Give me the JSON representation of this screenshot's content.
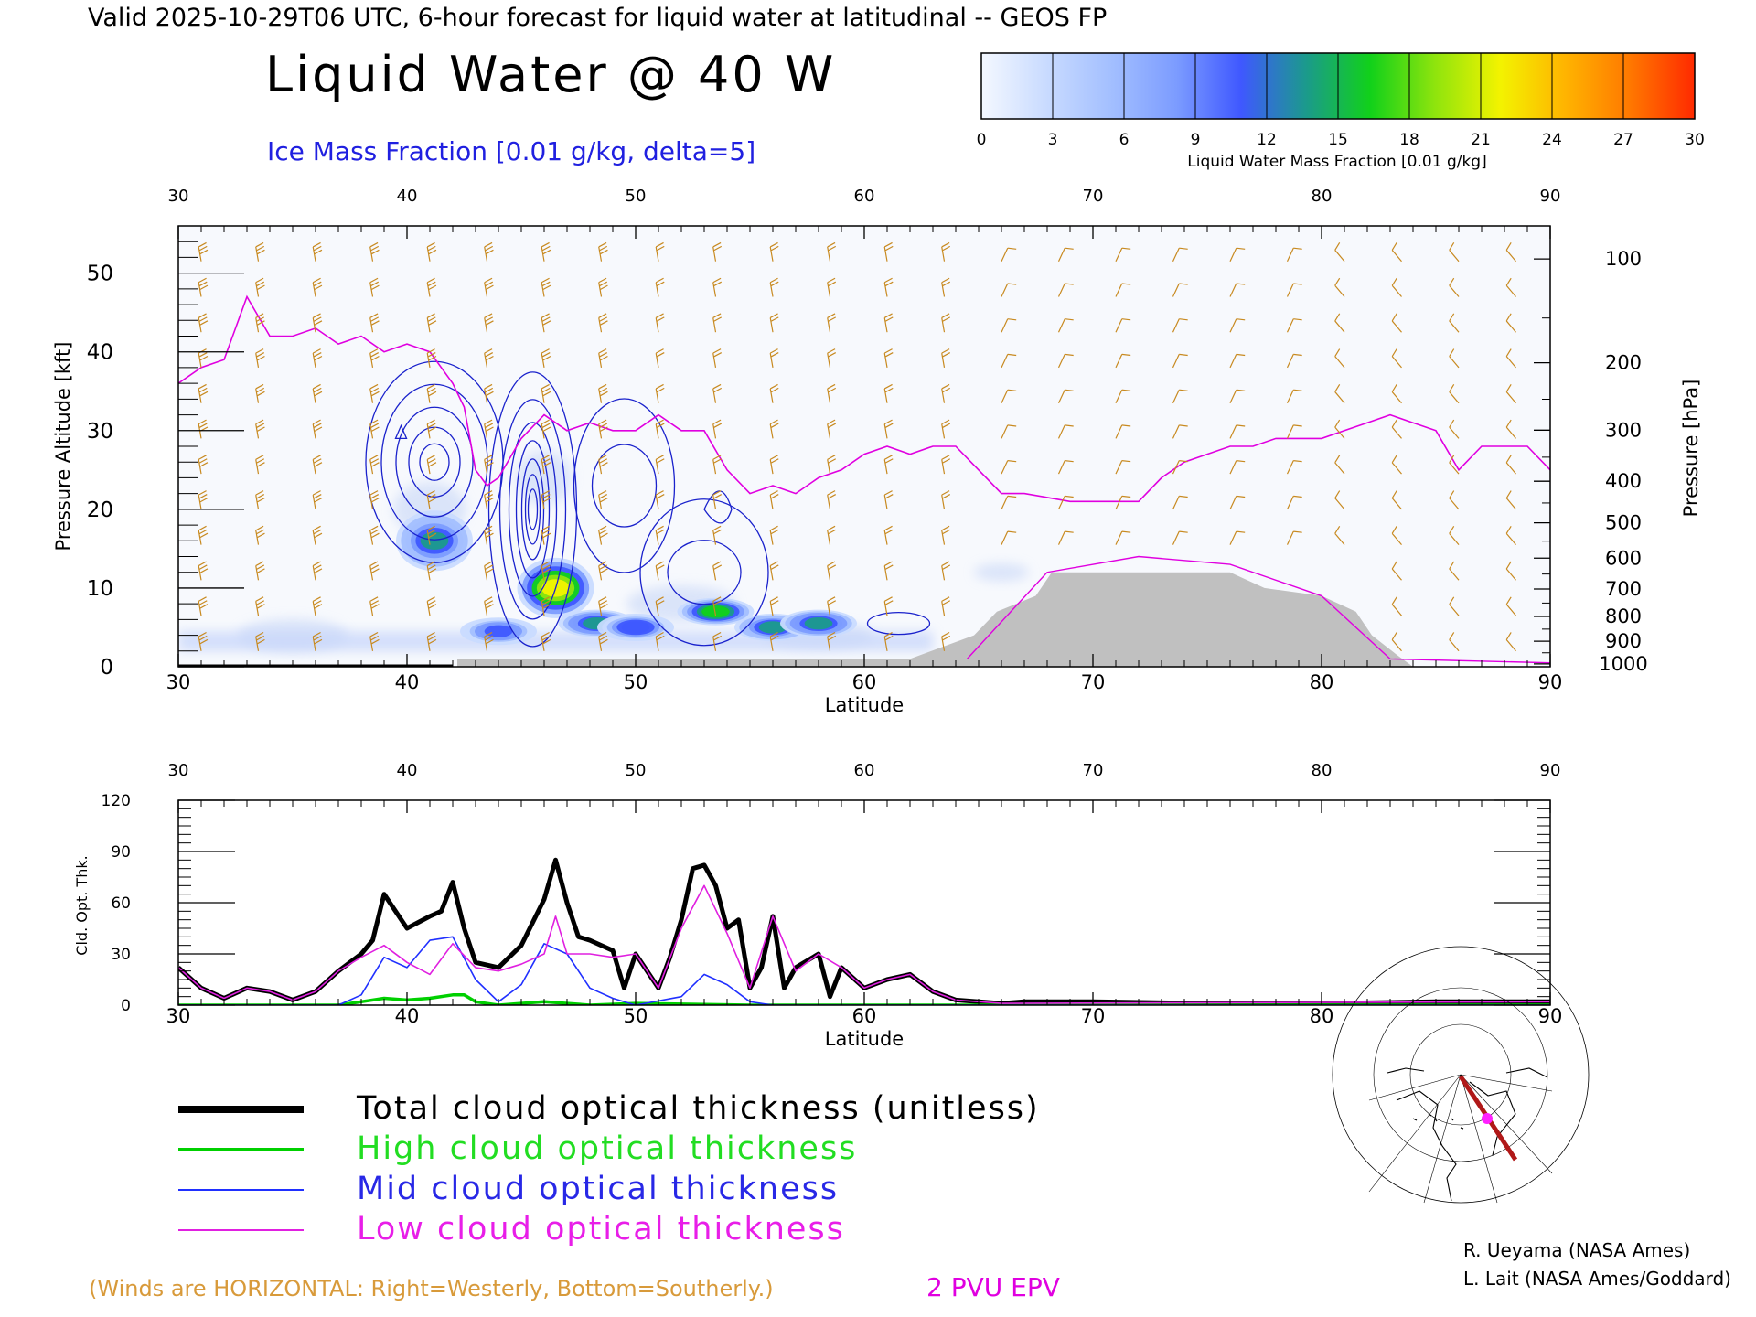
{
  "header": {
    "valid_line": "Valid 2025-10-29T06 UTC, 6-hour forecast for liquid water at latitudinal -- GEOS FP",
    "main_title": "Liquid Water @ 40 W",
    "subtitle": "Ice Mass Fraction [0.01 g/kg, delta=5]"
  },
  "colorbar": {
    "label": "Liquid Water Mass Fraction [0.01 g/kg]",
    "ticks": [
      "0",
      "3",
      "6",
      "9",
      "12",
      "15",
      "18",
      "21",
      "24",
      "27",
      "30"
    ],
    "colors": [
      "#f4f8ff",
      "#c9dbff",
      "#a3bfff",
      "#7c9cff",
      "#3f58ff",
      "#1b9a8c",
      "#11d11a",
      "#8fe40d",
      "#f3f300",
      "#ffb400",
      "#ff7800",
      "#ff2a00"
    ]
  },
  "colors": {
    "ice_contour": "#1a22cc",
    "epv_line": "#e000e0",
    "wind_barb": "#c88a20",
    "terrain": "#c0c0c0",
    "total_line": "#000000",
    "high_line": "#00d000",
    "mid_line": "#2030ff",
    "low_line": "#e020e0"
  },
  "chart_data": [
    {
      "type": "heatmap",
      "description_ref": "liquid water cross-section",
      "xlabel": "Latitude",
      "ylabel_left": "Pressure Altitude [kft]",
      "ylabel_right": "Pressure [hPa]",
      "x_ticks": [
        "30",
        "40",
        "50",
        "60",
        "70",
        "80",
        "90"
      ],
      "y_ticks_left": [
        "0",
        "10",
        "20",
        "30",
        "40",
        "50"
      ],
      "y_ticks_right": [
        "100",
        "200",
        "300",
        "400",
        "500",
        "600",
        "700",
        "800",
        "900",
        "1000"
      ],
      "xlim": [
        30,
        90
      ],
      "ylim": [
        0,
        56
      ],
      "liquid_water_blobs": [
        {
          "lat": 41.2,
          "kft": 16,
          "peak": 13
        },
        {
          "lat": 46.5,
          "kft": 10,
          "peak": 23
        },
        {
          "lat": 48.3,
          "kft": 5.5,
          "peak": 14
        },
        {
          "lat": 53.5,
          "kft": 7,
          "peak": 16
        },
        {
          "lat": 56.0,
          "kft": 5,
          "peak": 13
        },
        {
          "lat": 58.0,
          "kft": 5.5,
          "peak": 14
        },
        {
          "lat": 44.0,
          "kft": 4.5,
          "peak": 11
        },
        {
          "lat": 50.0,
          "kft": 5,
          "peak": 12
        }
      ],
      "epv_2pvu_kft": [
        [
          30,
          36
        ],
        [
          31,
          38
        ],
        [
          32,
          39
        ],
        [
          33,
          47
        ],
        [
          34,
          42
        ],
        [
          35,
          42
        ],
        [
          36,
          43
        ],
        [
          37,
          41
        ],
        [
          38,
          42
        ],
        [
          39,
          40
        ],
        [
          40,
          41
        ],
        [
          41,
          40
        ],
        [
          42,
          36
        ],
        [
          42.5,
          33
        ],
        [
          43,
          25
        ],
        [
          43.5,
          23
        ],
        [
          44,
          24
        ],
        [
          45,
          29
        ],
        [
          46,
          32
        ],
        [
          47,
          30
        ],
        [
          48,
          31
        ],
        [
          49,
          30
        ],
        [
          50,
          30
        ],
        [
          51,
          32
        ],
        [
          52,
          30
        ],
        [
          53,
          30
        ],
        [
          54,
          25
        ],
        [
          55,
          22
        ],
        [
          56,
          23
        ],
        [
          57,
          22
        ],
        [
          58,
          24
        ],
        [
          59,
          25
        ],
        [
          60,
          27
        ],
        [
          61,
          28
        ],
        [
          62,
          27
        ],
        [
          63,
          28
        ],
        [
          64,
          28
        ],
        [
          65,
          25
        ],
        [
          66,
          22
        ],
        [
          67,
          22
        ],
        [
          68,
          21.5
        ],
        [
          69,
          21
        ],
        [
          70,
          21
        ],
        [
          71,
          21
        ],
        [
          72,
          21
        ],
        [
          73,
          24
        ],
        [
          74,
          26
        ],
        [
          75,
          27
        ],
        [
          76,
          28
        ],
        [
          77,
          28
        ],
        [
          78,
          29
        ],
        [
          79,
          29
        ],
        [
          80,
          29
        ],
        [
          81,
          30
        ],
        [
          82,
          31
        ],
        [
          83,
          32
        ],
        [
          84,
          31
        ],
        [
          85,
          30
        ],
        [
          86,
          25
        ],
        [
          87,
          28
        ],
        [
          88,
          28
        ],
        [
          89,
          28
        ],
        [
          90,
          25
        ]
      ],
      "terrain_kft": [
        [
          42.2,
          1
        ],
        [
          62,
          1
        ],
        [
          64.8,
          4
        ],
        [
          65.8,
          7
        ],
        [
          67.5,
          9
        ],
        [
          68.2,
          12
        ],
        [
          76,
          12
        ],
        [
          77.5,
          10
        ],
        [
          80,
          9
        ],
        [
          81.5,
          7
        ],
        [
          82.2,
          4
        ],
        [
          83.3,
          1.5
        ],
        [
          84,
          0
        ]
      ]
    },
    {
      "type": "line",
      "xlabel": "Latitude",
      "ylabel": "Cld. Opt. Thk.",
      "x_ticks": [
        "30",
        "40",
        "50",
        "60",
        "70",
        "80",
        "90"
      ],
      "y_ticks": [
        "0",
        "30",
        "60",
        "90",
        "120"
      ],
      "xlim": [
        30,
        90
      ],
      "ylim": [
        0,
        120
      ],
      "series": [
        {
          "name": "Total cloud optical thickness (unitless)",
          "values": [
            [
              30,
              22
            ],
            [
              31,
              10
            ],
            [
              32,
              4
            ],
            [
              33,
              10
            ],
            [
              34,
              8
            ],
            [
              35,
              3
            ],
            [
              36,
              8
            ],
            [
              37,
              20
            ],
            [
              38,
              30
            ],
            [
              38.5,
              38
            ],
            [
              39,
              65
            ],
            [
              40,
              45
            ],
            [
              41,
              52
            ],
            [
              41.5,
              55
            ],
            [
              42,
              72
            ],
            [
              42.5,
              45
            ],
            [
              43,
              25
            ],
            [
              44,
              22
            ],
            [
              45,
              35
            ],
            [
              46,
              62
            ],
            [
              46.5,
              85
            ],
            [
              47,
              60
            ],
            [
              47.5,
              40
            ],
            [
              48,
              38
            ],
            [
              49,
              32
            ],
            [
              49.5,
              10
            ],
            [
              50,
              30
            ],
            [
              51,
              10
            ],
            [
              51.5,
              28
            ],
            [
              52,
              50
            ],
            [
              52.5,
              80
            ],
            [
              53,
              82
            ],
            [
              53.5,
              70
            ],
            [
              54,
              45
            ],
            [
              54.5,
              50
            ],
            [
              55,
              10
            ],
            [
              55.5,
              22
            ],
            [
              56,
              52
            ],
            [
              56.5,
              10
            ],
            [
              57,
              22
            ],
            [
              58,
              30
            ],
            [
              58.5,
              5
            ],
            [
              59,
              22
            ],
            [
              60,
              10
            ],
            [
              61,
              15
            ],
            [
              62,
              18
            ],
            [
              63,
              8
            ],
            [
              64,
              3
            ],
            [
              65,
              2
            ],
            [
              66,
              1
            ],
            [
              67,
              2
            ],
            [
              70,
              2
            ],
            [
              75,
              1
            ],
            [
              80,
              1
            ],
            [
              85,
              2
            ],
            [
              90,
              2
            ]
          ]
        },
        {
          "name": "High cloud optical thickness",
          "values": [
            [
              30,
              0
            ],
            [
              37,
              0
            ],
            [
              38,
              2
            ],
            [
              39,
              4
            ],
            [
              40,
              3
            ],
            [
              41,
              4
            ],
            [
              42,
              6
            ],
            [
              42.5,
              6
            ],
            [
              43,
              2
            ],
            [
              44,
              0
            ],
            [
              45,
              1
            ],
            [
              46,
              2
            ],
            [
              47,
              1
            ],
            [
              48,
              0
            ],
            [
              50,
              1
            ],
            [
              55,
              0
            ],
            [
              90,
              0
            ]
          ]
        },
        {
          "name": "Mid cloud optical thickness",
          "values": [
            [
              30,
              0
            ],
            [
              37,
              0
            ],
            [
              38,
              6
            ],
            [
              39,
              28
            ],
            [
              40,
              22
            ],
            [
              41,
              38
            ],
            [
              42,
              40
            ],
            [
              43,
              15
            ],
            [
              44,
              2
            ],
            [
              45,
              12
            ],
            [
              46,
              36
            ],
            [
              47,
              30
            ],
            [
              48,
              10
            ],
            [
              49,
              4
            ],
            [
              50,
              0
            ],
            [
              52,
              5
            ],
            [
              53,
              18
            ],
            [
              54,
              12
            ],
            [
              55,
              2
            ],
            [
              56,
              0
            ],
            [
              90,
              0
            ]
          ]
        },
        {
          "name": "Low cloud optical thickness",
          "values": [
            [
              30,
              22
            ],
            [
              31,
              10
            ],
            [
              32,
              4
            ],
            [
              33,
              10
            ],
            [
              34,
              8
            ],
            [
              35,
              3
            ],
            [
              36,
              8
            ],
            [
              37,
              20
            ],
            [
              38,
              28
            ],
            [
              39,
              35
            ],
            [
              40,
              25
            ],
            [
              41,
              18
            ],
            [
              42,
              36
            ],
            [
              43,
              22
            ],
            [
              44,
              20
            ],
            [
              45,
              24
            ],
            [
              46,
              30
            ],
            [
              46.5,
              52
            ],
            [
              47,
              30
            ],
            [
              48,
              30
            ],
            [
              49,
              28
            ],
            [
              50,
              30
            ],
            [
              51,
              10
            ],
            [
              52,
              45
            ],
            [
              53,
              70
            ],
            [
              54,
              42
            ],
            [
              55,
              10
            ],
            [
              56,
              52
            ],
            [
              57,
              20
            ],
            [
              58,
              30
            ],
            [
              59,
              22
            ],
            [
              60,
              10
            ],
            [
              61,
              15
            ],
            [
              62,
              18
            ],
            [
              63,
              8
            ],
            [
              64,
              3
            ],
            [
              66,
              1
            ],
            [
              90,
              2
            ]
          ]
        }
      ]
    }
  ],
  "legend": {
    "total": "Total cloud optical thickness (unitless)",
    "high": "High cloud optical thickness",
    "mid": "Mid cloud optical thickness",
    "low": "Low cloud optical thickness"
  },
  "footer": {
    "winds_note": "(Winds are HORIZONTAL: Right=Westerly, Bottom=Southerly.)",
    "epv_label": "2 PVU EPV",
    "credit1": "R. Ueyama (NASA Ames)",
    "credit2": "L. Lait (NASA Ames/Goddard)"
  }
}
